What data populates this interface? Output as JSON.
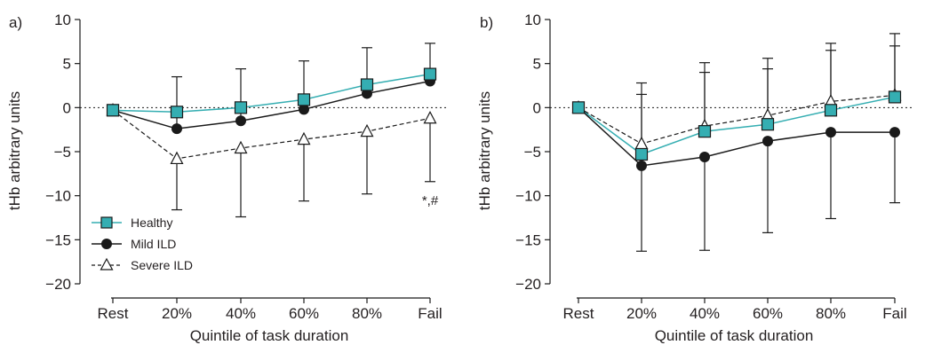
{
  "chart_data": [
    {
      "panel": "a)",
      "type": "line",
      "xlabel": "Quintile of task duration",
      "ylabel": "tHb arbitrary units",
      "categories": [
        "Rest",
        "20%",
        "40%",
        "60%",
        "80%",
        "Fail"
      ],
      "ylim": [
        -20,
        10
      ],
      "yticks": [
        "10",
        "5",
        "0",
        "−5",
        "−10",
        "−15",
        "−20"
      ],
      "reference_line": 0,
      "annotation": "*,#",
      "legend_position": "bottom-left",
      "series": [
        {
          "name": "Healthy",
          "marker": "square",
          "color": "#35aeb2",
          "line": "solid",
          "values": [
            -0.3,
            -0.5,
            0.0,
            0.9,
            2.6,
            3.8
          ],
          "err_low": [
            null,
            null,
            null,
            null,
            null,
            null
          ],
          "err_high": [
            null,
            null,
            null,
            null,
            null,
            null
          ]
        },
        {
          "name": "Mild ILD",
          "marker": "circle",
          "color": "#1a1a1a",
          "line": "solid",
          "values": [
            -0.3,
            -2.4,
            -1.5,
            -0.2,
            1.6,
            3.0
          ],
          "err_low": [
            null,
            null,
            null,
            null,
            null,
            null
          ],
          "err_high": [
            null,
            3.5,
            4.4,
            5.3,
            6.8,
            7.3
          ]
        },
        {
          "name": "Severe ILD",
          "marker": "triangle-open",
          "color": "#1a1a1a",
          "line": "dashed",
          "values": [
            -0.3,
            -5.8,
            -4.6,
            -3.6,
            -2.7,
            -1.2
          ],
          "err_low": [
            null,
            -11.6,
            -12.4,
            -10.6,
            -9.8,
            -8.4
          ],
          "err_high": [
            null,
            null,
            null,
            null,
            null,
            null
          ]
        }
      ]
    },
    {
      "panel": "b)",
      "type": "line",
      "xlabel": "Quintile of task duration",
      "ylabel": "tHb arbitrary units",
      "categories": [
        "Rest",
        "20%",
        "40%",
        "60%",
        "80%",
        "Fail"
      ],
      "ylim": [
        -20,
        10
      ],
      "yticks": [
        "10",
        "5",
        "0",
        "−5",
        "−10",
        "−15",
        "−20"
      ],
      "reference_line": 0,
      "series": [
        {
          "name": "Healthy",
          "marker": "square",
          "color": "#35aeb2",
          "line": "solid",
          "values": [
            0.0,
            -5.3,
            -2.7,
            -1.9,
            -0.3,
            1.2
          ],
          "err_low": [
            null,
            null,
            null,
            null,
            null,
            null
          ],
          "err_high": [
            null,
            1.5,
            4.0,
            4.4,
            6.5,
            7.0
          ]
        },
        {
          "name": "Mild ILD",
          "marker": "circle",
          "color": "#1a1a1a",
          "line": "solid",
          "values": [
            0.0,
            -6.6,
            -5.6,
            -3.8,
            -2.8,
            -2.8
          ],
          "err_low": [
            null,
            -16.3,
            -16.2,
            -14.2,
            -12.6,
            -10.8
          ],
          "err_high": [
            null,
            null,
            null,
            null,
            null,
            null
          ]
        },
        {
          "name": "Severe ILD",
          "marker": "triangle-open",
          "color": "#1a1a1a",
          "line": "dashed",
          "values": [
            0.0,
            -4.1,
            -2.1,
            -0.9,
            0.7,
            1.4
          ],
          "err_low": [
            null,
            null,
            null,
            null,
            null,
            null
          ],
          "err_high": [
            null,
            2.8,
            5.1,
            5.6,
            7.3,
            8.4
          ]
        }
      ]
    }
  ]
}
